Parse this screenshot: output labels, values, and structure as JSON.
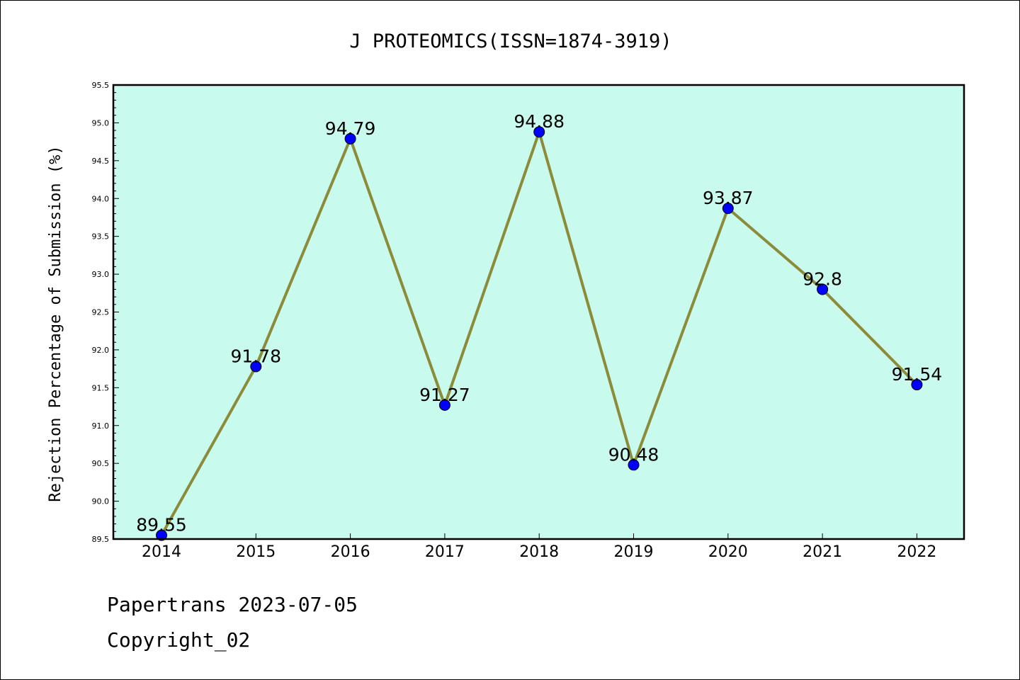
{
  "chart_data": {
    "type": "line",
    "title": "J PROTEOMICS(ISSN=1874-3919)",
    "xlabel": "",
    "ylabel": "Rejection Percentage of Submission (%)",
    "x": [
      "2014",
      "2015",
      "2016",
      "2017",
      "2018",
      "2019",
      "2020",
      "2021",
      "2022"
    ],
    "series": [
      {
        "values": [
          89.55,
          91.78,
          94.79,
          91.27,
          94.88,
          90.48,
          93.87,
          92.8,
          91.54
        ],
        "labels": [
          "89.55",
          "91.78",
          "94.79",
          "91.27",
          "94.88",
          "90.48",
          "93.87",
          "92.8",
          "91.54"
        ]
      }
    ],
    "ylim": [
      89.5,
      95.5
    ],
    "yticks": [
      "89.5",
      "90.0",
      "90.5",
      "91.0",
      "91.5",
      "92.0",
      "92.5",
      "93.0",
      "93.5",
      "94.0",
      "94.5",
      "95.0",
      "95.5"
    ],
    "grid": false,
    "colors": {
      "plot_background": "#c8fbee",
      "line": "#8b8b3a",
      "marker": "#0000ff"
    }
  },
  "footer": {
    "line1": "Papertrans 2023-07-05",
    "line2": "Copyright_02"
  }
}
